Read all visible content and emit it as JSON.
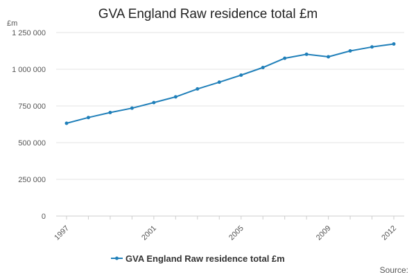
{
  "chart_data": {
    "type": "line",
    "title": "GVA England Raw residence total £m",
    "ylabel": "£m",
    "xlabel": "",
    "ylim": [
      0,
      1250000
    ],
    "y_ticks": [
      0,
      250000,
      500000,
      750000,
      1000000,
      1250000
    ],
    "y_tick_labels": [
      "0",
      "250 000",
      "500 000",
      "750 000",
      "1 000 000",
      "1 250 000"
    ],
    "x": [
      1997,
      1998,
      1999,
      2000,
      2001,
      2002,
      2003,
      2004,
      2005,
      2006,
      2007,
      2008,
      2009,
      2010,
      2011,
      2012
    ],
    "x_tick_labels": [
      "1997",
      "2001",
      "2005",
      "2009",
      "2012"
    ],
    "x_tick_values": [
      1997,
      2001,
      2005,
      2009,
      2012
    ],
    "series": [
      {
        "name": "GVA England Raw residence total £m",
        "color": "#1f7fb9",
        "values": [
          632000,
          671000,
          705000,
          735000,
          773000,
          812000,
          866000,
          912000,
          960000,
          1012000,
          1075000,
          1102000,
          1085000,
          1125000,
          1152000,
          1172000
        ]
      }
    ],
    "grid": true,
    "legend_position": "bottom-center"
  },
  "footer": {
    "source_label": "Source:"
  }
}
